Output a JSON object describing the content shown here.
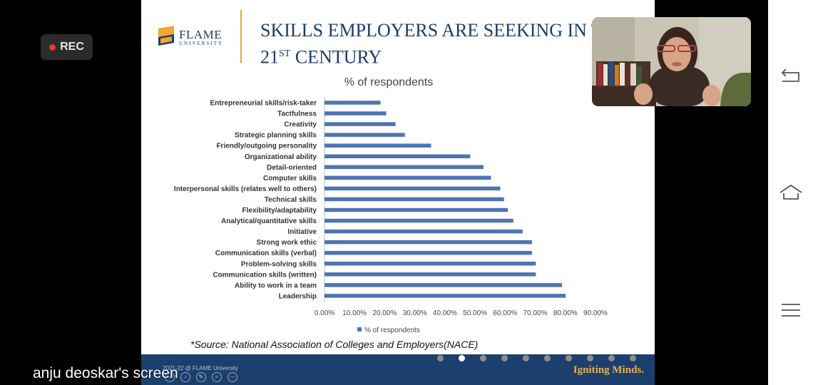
{
  "recording": {
    "label": "REC"
  },
  "screen_share": {
    "label": "anju deoskar's screen"
  },
  "nav_icons": [
    "back-icon",
    "home-icon",
    "menu-icon"
  ],
  "slide": {
    "logo": {
      "name": "FLAME",
      "sub": "UNIVERSITY"
    },
    "title": {
      "line1": "SKILLS EMPLOYERS ARE SEEKING IN THE",
      "line2_prefix": "21",
      "line2_sup": "ST",
      "line2_suffix": "CENTURY"
    },
    "source": "*Source: National Association of Colleges and Employers(NACE)",
    "footer": {
      "copyright": "2021-22 @ FLAME University",
      "tagline": "Igniting Minds."
    },
    "pagination": {
      "count": 10,
      "active": 1
    }
  },
  "colors": {
    "bar": "#4f74b3",
    "footer_bg": "#1c3f6e",
    "title": "#1f3a6d",
    "accent": "#e8a33d",
    "tagline": "#e8b04a"
  },
  "chart_data": {
    "type": "bar",
    "orientation": "horizontal",
    "title": "% of respondents",
    "categories": [
      "Entrepreneurial skills/risk-taker",
      "Tactfulness",
      "Creativity",
      "Strategic planning skills",
      "Friendly/outgoing personality",
      "Organizational ability",
      "Detail-oriented",
      "Computer skills",
      "Interpersonal skills (relates well to others)",
      "Technical skills",
      "Flexibility/adaptability",
      "Analytical/quantitative skills",
      "Initiative",
      "Strong work ethic",
      "Communication skills (verbal)",
      "Problem-solving skills",
      "Communication skills (written)",
      "Ability to work in a team",
      "Leadership"
    ],
    "series": [
      {
        "name": "% of respondents",
        "values": [
          0.186,
          0.205,
          0.236,
          0.267,
          0.354,
          0.484,
          0.528,
          0.553,
          0.584,
          0.596,
          0.609,
          0.627,
          0.658,
          0.689,
          0.689,
          0.702,
          0.702,
          0.789,
          0.801
        ]
      }
    ],
    "xlim": [
      0,
      0.9
    ],
    "xticks": [
      "0.00%",
      "10.00%",
      "20.00%",
      "30.00%",
      "40.00%",
      "50.00%",
      "60.00%",
      "70.00%",
      "80.00%",
      "90.00%"
    ],
    "legend": {
      "position": "bottom",
      "label": "% of respondents"
    },
    "grid": false
  }
}
